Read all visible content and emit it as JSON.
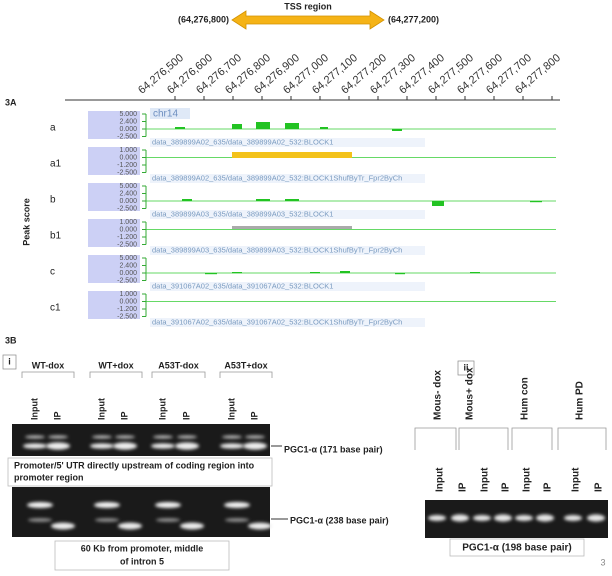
{
  "header": {
    "title": "TSS region",
    "start": "(64,276,800)",
    "end": "(64,277,200)"
  },
  "axis_labels": [
    "64,276,500",
    "64,276,600",
    "64,276,700",
    "64,276,800",
    "64,276,900",
    "64,277,000",
    "64,277,100",
    "64,277,200",
    "64,277,300",
    "64,277,400",
    "64,277,500",
    "64,277,600",
    "64,277,700",
    "64,277,800"
  ],
  "panel_a": {
    "label": "3A",
    "y_title": "Peak score",
    "chrom": "chr14",
    "tracks": [
      {
        "id": "a",
        "scale": [
          "5.000",
          "2.400",
          "0.000",
          "-2.500"
        ],
        "name": "data_389899A02_635/data_389899A02_532:BLOCK1"
      },
      {
        "id": "a1",
        "scale": [
          "1.000",
          "0.000",
          "-1.200",
          "-2.500"
        ],
        "name": "data_389899A02_635/data_389899A02_532:BLOCK1ShufByTr_Fpr2ByCh"
      },
      {
        "id": "b",
        "scale": [
          "5.000",
          "2.400",
          "0.000",
          "-2.500"
        ],
        "name": "data_389899A03_635/data_389899A03_532:BLOCK1"
      },
      {
        "id": "b1",
        "scale": [
          "1.000",
          "0.000",
          "-1.200",
          "-2.500"
        ],
        "name": "data_389899A03_635/data_389899A03_532:BLOCK1ShufByTr_Fpr2ByCh"
      },
      {
        "id": "c",
        "scale": [
          "5.000",
          "2.400",
          "0.000",
          "-2.500"
        ],
        "name": "data_391067A02_635/data_391067A02_532:BLOCK1"
      },
      {
        "id": "c1",
        "scale": [
          "1.000",
          "0.000",
          "-1.200",
          "-2.500"
        ],
        "name": "data_391067A02_635/data_391067A02_532:BLOCK1ShufByTr_Fpr2ByCh"
      }
    ]
  },
  "panel_b": {
    "label": "3B",
    "i": {
      "label": "i",
      "groups": [
        "WT-dox",
        "WT+dox",
        "A53T-dox",
        "A53T+dox"
      ],
      "lanes": [
        "Input",
        "IP",
        "Input",
        "IP",
        "Input",
        "IP",
        "Input",
        "IP"
      ],
      "gel1_label": "PGC1-α (171 base pair)",
      "gel1_caption": [
        "Promoter/5' UTR directly upstream of coding region into",
        "promoter region"
      ],
      "gel2_label": "PGC1-α (238 base pair)",
      "gel2_caption": [
        "60 Kb from promoter, middle",
        "of intron 5"
      ]
    },
    "ii": {
      "label": "ii",
      "groups": [
        "Mous- dox",
        "Mous+ dox",
        "Hum con",
        "Hum PD"
      ],
      "lanes": [
        "Input",
        "IP",
        "Input",
        "IP",
        "Input",
        "IP",
        "Input",
        "IP"
      ],
      "gel_label": "PGC1-α (198 base pair)"
    }
  },
  "page_number": "3"
}
